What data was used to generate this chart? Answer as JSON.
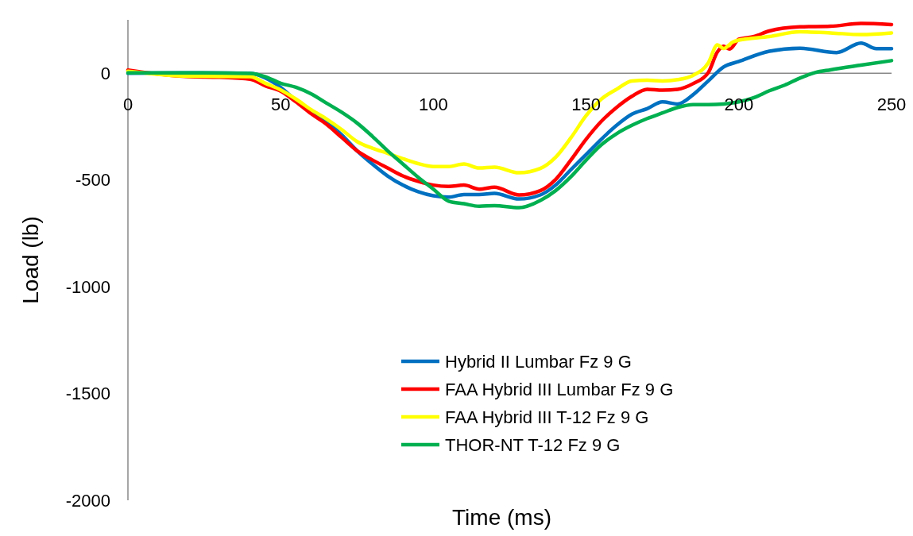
{
  "chart_data": {
    "type": "line",
    "xlabel": "Time (ms)",
    "ylabel": "Load (lb)",
    "xlim": [
      0,
      250
    ],
    "xticks": [
      0,
      50,
      100,
      150,
      200,
      250
    ],
    "ylim": [
      -2000,
      250
    ],
    "yticks": [
      -2000,
      -1500,
      -1000,
      -500,
      0
    ],
    "grid": false,
    "legend": "bottom right",
    "line_style": "solid",
    "marker": "none",
    "series": [
      {
        "name": "Hybrid II Lumbar Fz 9 G",
        "color": "#0070c0",
        "x": [
          0,
          20,
          40,
          45,
          50,
          55,
          60,
          65,
          70,
          75,
          80,
          85,
          90,
          95,
          100,
          105,
          110,
          115,
          120,
          128,
          135,
          140,
          145,
          150,
          155,
          160,
          165,
          170,
          175,
          180,
          185,
          190,
          195,
          200,
          210,
          220,
          232,
          240,
          245,
          250
        ],
        "values": [
          0,
          2,
          0,
          -22,
          -66,
          -128,
          -183,
          -227,
          -289,
          -363,
          -425,
          -481,
          -524,
          -555,
          -574,
          -580,
          -568,
          -568,
          -563,
          -589,
          -570,
          -524,
          -452,
          -381,
          -309,
          -244,
          -192,
          -166,
          -134,
          -144,
          -101,
          -36,
          29,
          55,
          103,
          117,
          97,
          141,
          115,
          115
        ]
      },
      {
        "name": "FAA Hybrid III Lumbar Fz 9 G",
        "color": "#ff0000",
        "x": [
          0,
          10,
          20,
          30,
          40,
          45,
          50,
          55,
          60,
          65,
          70,
          75,
          80,
          85,
          90,
          95,
          100,
          105,
          110,
          115,
          120,
          128,
          135,
          140,
          145,
          150,
          155,
          160,
          165,
          170,
          175,
          180,
          185,
          190,
          193,
          195,
          197,
          200,
          205,
          210,
          220,
          230,
          240,
          250
        ],
        "values": [
          15,
          -4,
          -16,
          -19,
          -28,
          -59,
          -84,
          -134,
          -190,
          -239,
          -301,
          -363,
          -406,
          -444,
          -481,
          -506,
          -524,
          -530,
          -524,
          -543,
          -534,
          -570,
          -550,
          -498,
          -407,
          -309,
          -225,
          -160,
          -108,
          -75,
          -79,
          -75,
          -49,
          3,
          100,
          126,
          113,
          159,
          172,
          198,
          217,
          220,
          233,
          228
        ]
      },
      {
        "name": "FAA Hybrid III T-12 Fz 9 G",
        "color": "#ffff00",
        "x": [
          0,
          20,
          40,
          45,
          50,
          55,
          60,
          65,
          70,
          75,
          80,
          85,
          90,
          95,
          100,
          105,
          110,
          115,
          120,
          128,
          135,
          140,
          145,
          150,
          155,
          160,
          165,
          170,
          175,
          180,
          185,
          190,
          193,
          195,
          198,
          200,
          210,
          220,
          230,
          240,
          250
        ],
        "values": [
          9,
          -14,
          -16,
          -47,
          -78,
          -121,
          -171,
          -214,
          -264,
          -320,
          -351,
          -375,
          -400,
          -423,
          -437,
          -437,
          -425,
          -444,
          -440,
          -466,
          -446,
          -394,
          -303,
          -199,
          -121,
          -75,
          -36,
          -33,
          -36,
          -30,
          -10,
          48,
          133,
          116,
          146,
          155,
          172,
          194,
          189,
          181,
          189
        ]
      },
      {
        "name": "THOR-NT T-12 Fz 9 G",
        "color": "#00b050",
        "x": [
          0,
          20,
          40,
          45,
          50,
          55,
          60,
          65,
          70,
          75,
          80,
          85,
          90,
          95,
          100,
          105,
          110,
          115,
          120,
          128,
          135,
          140,
          145,
          150,
          155,
          160,
          165,
          170,
          175,
          180,
          185,
          190,
          195,
          200,
          205,
          210,
          215,
          220,
          225,
          230,
          240,
          250
        ],
        "values": [
          2,
          2,
          -1,
          -16,
          -47,
          -66,
          -97,
          -140,
          -183,
          -233,
          -295,
          -363,
          -425,
          -487,
          -543,
          -599,
          -611,
          -623,
          -620,
          -630,
          -596,
          -550,
          -485,
          -407,
          -335,
          -283,
          -244,
          -212,
          -186,
          -160,
          -147,
          -147,
          -144,
          -134,
          -114,
          -82,
          -56,
          -23,
          3,
          16,
          38,
          59
        ]
      }
    ]
  }
}
